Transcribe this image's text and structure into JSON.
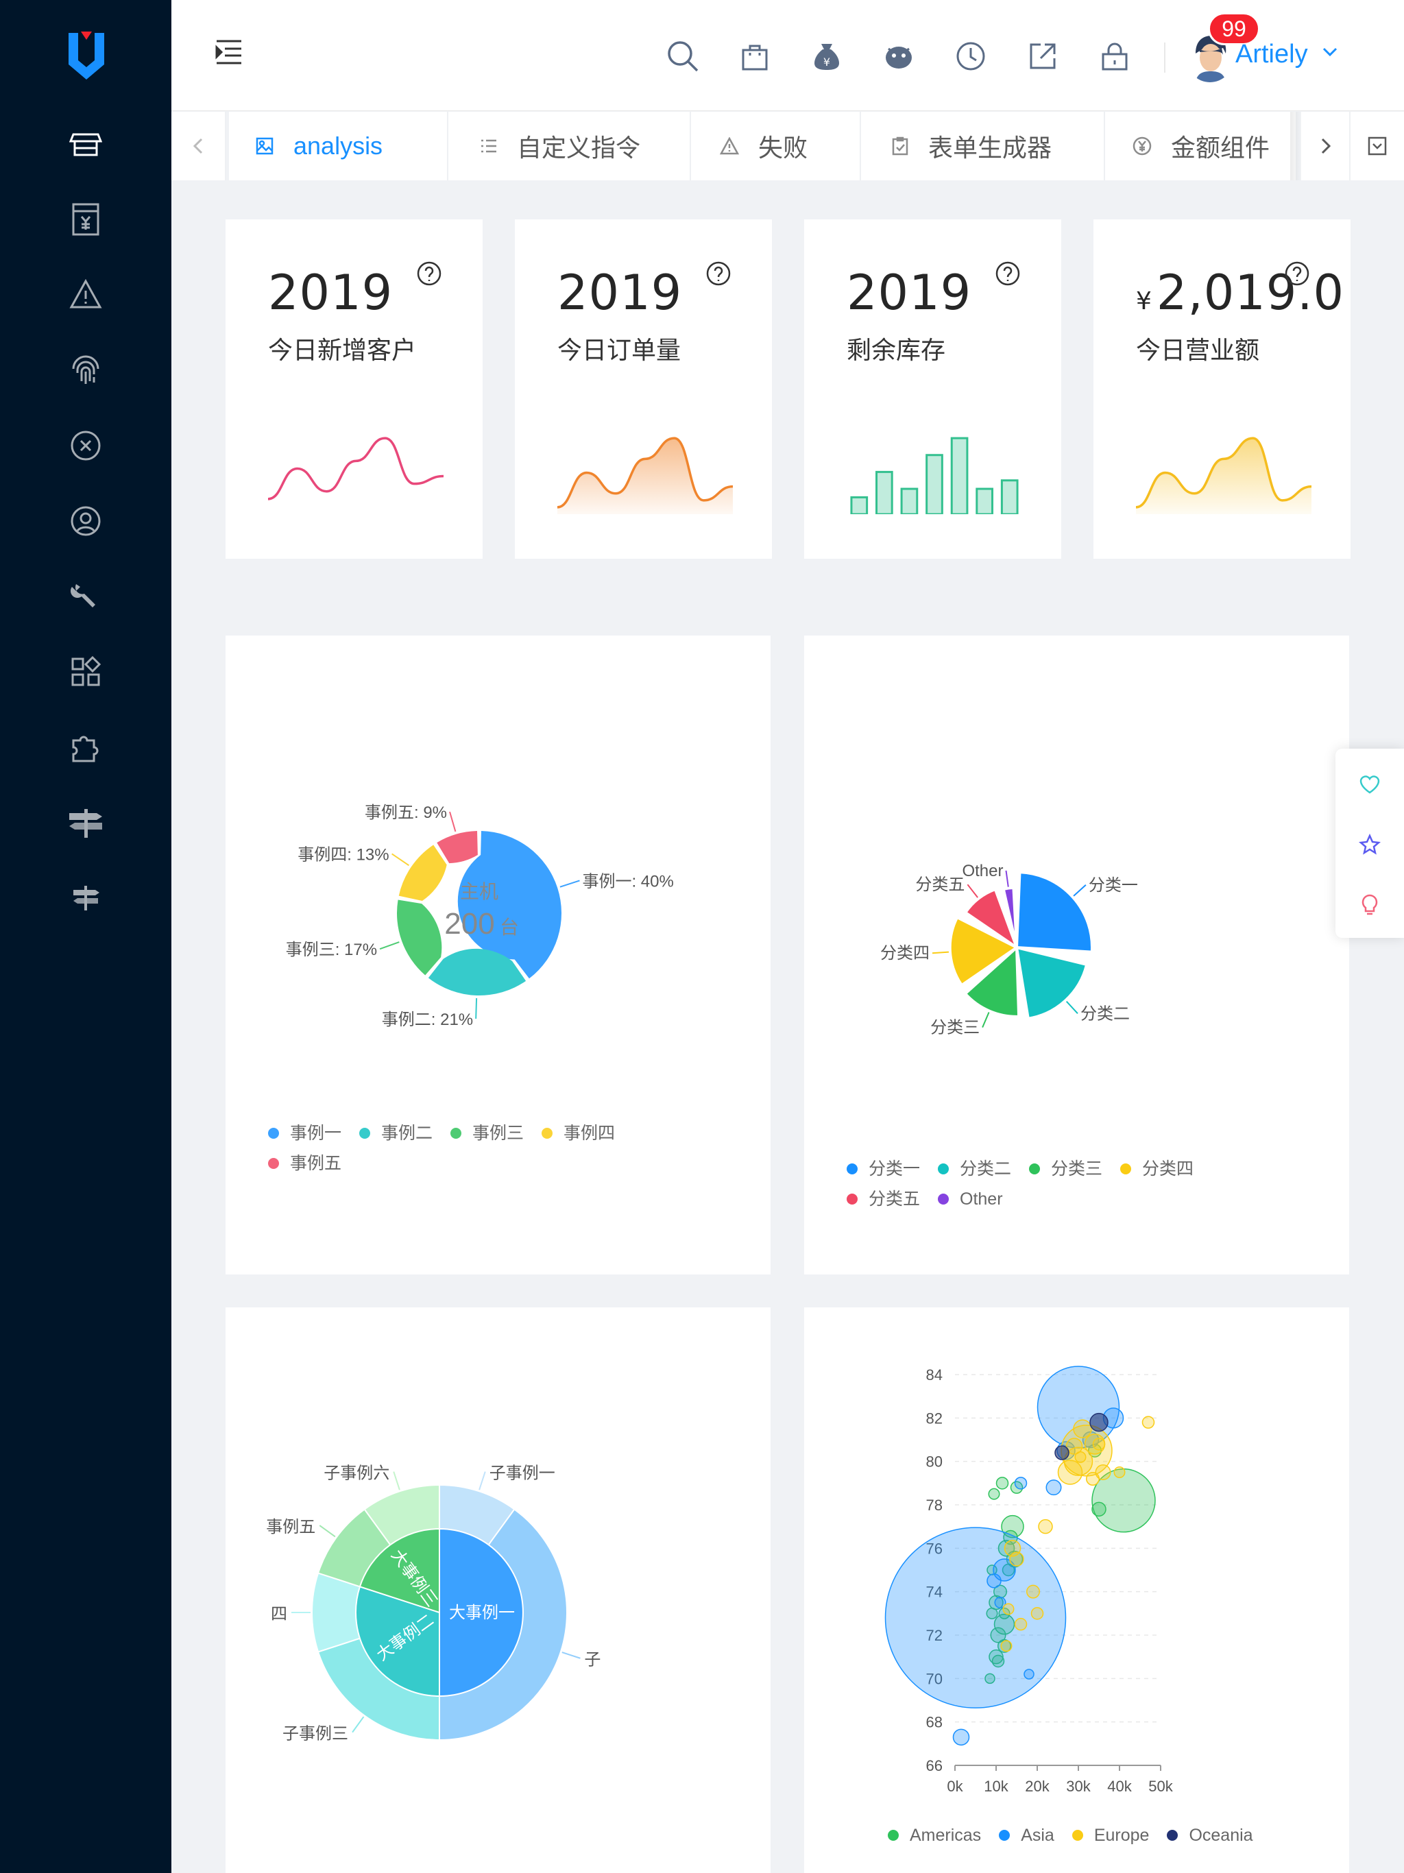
{
  "header": {
    "user_name": "Artiely",
    "notification_count": "99",
    "icons": [
      "search-icon",
      "shopping-bag-icon",
      "money-bag-icon",
      "bird-icon",
      "clock-icon",
      "external-link-icon",
      "lock-icon"
    ]
  },
  "tabs": [
    {
      "label": "analysis",
      "icon": "image-icon",
      "active": true
    },
    {
      "label": "自定义指令",
      "icon": "list-icon",
      "active": false
    },
    {
      "label": "失败",
      "icon": "warning-icon",
      "active": false
    },
    {
      "label": "表单生成器",
      "icon": "form-icon",
      "active": false
    },
    {
      "label": "金额组件",
      "icon": "yen-icon",
      "active": false
    }
  ],
  "sidebar": {
    "items": [
      "shop-icon",
      "receipt-yen-icon",
      "warning-icon",
      "fingerprint-icon",
      "close-circle-icon",
      "user-circle-icon",
      "wrench-icon",
      "apps-icon",
      "puzzle-icon",
      "signpost-icon",
      "signpost-small-icon"
    ]
  },
  "stats": [
    {
      "value": "2019",
      "label": "今日新增客户",
      "color": "#e8487a",
      "kind": "line",
      "trend": [
        2,
        6,
        3,
        7,
        10,
        4,
        5
      ]
    },
    {
      "value": "2019",
      "label": "今日订单量",
      "color": "#f0852d",
      "kind": "area",
      "trend": [
        1,
        6,
        3,
        8,
        11,
        2,
        4
      ]
    },
    {
      "value": "2019",
      "label": "剩余库存",
      "color": "#33c08f",
      "kind": "bar",
      "trend": [
        2,
        5,
        3,
        7,
        9,
        3,
        4
      ]
    },
    {
      "currency": "¥",
      "value": "2,019.0",
      "label": "今日营业额",
      "color": "#f5bd1f",
      "kind": "area",
      "trend": [
        1,
        6,
        3,
        8,
        11,
        2,
        4
      ]
    }
  ],
  "chart_data": [
    {
      "type": "pie",
      "title": "主机",
      "center_value": "200",
      "center_unit": "台",
      "categories": [
        "事例一",
        "事例二",
        "事例三",
        "事例四",
        "事例五"
      ],
      "values": [
        40,
        21,
        17,
        13,
        9
      ],
      "labels": [
        "事例一: 40%",
        "事例二: 21%",
        "事例三: 17%",
        "事例四: 13%",
        "事例五: 9%"
      ],
      "colors": [
        "#3ba1ff",
        "#36cbcb",
        "#4ecb73",
        "#fbd437",
        "#f2637b"
      ],
      "legend": [
        "事例一",
        "事例二",
        "事例三",
        "事例四",
        "事例五"
      ]
    },
    {
      "type": "pie",
      "subtype": "rose",
      "categories": [
        "分类一",
        "分类二",
        "分类三",
        "分类四",
        "分类五",
        "Other"
      ],
      "values": [
        27,
        22,
        18,
        15,
        10,
        8
      ],
      "colors": [
        "#1890ff",
        "#13c2c2",
        "#2fc25b",
        "#facc14",
        "#f04864",
        "#8543e0"
      ],
      "legend": [
        "分类一",
        "分类二",
        "分类三",
        "分类四",
        "分类五",
        "Other"
      ]
    },
    {
      "type": "pie",
      "subtype": "sunburst",
      "inner": {
        "categories": [
          "大事例一",
          "大事例二",
          "大事例三"
        ],
        "values": [
          50,
          30,
          20
        ],
        "colors": [
          "#3ba1ff",
          "#36cbcb",
          "#4ecb73"
        ]
      },
      "outer": {
        "categories": [
          "子事例一",
          "子事例二",
          "子事例三",
          "子事例四",
          "子事例五",
          "子事例六"
        ],
        "values": [
          10,
          40,
          20,
          10,
          10,
          10
        ],
        "colors": [
          "#c2e3fb",
          "#93cefc",
          "#8be9e9",
          "#b5f4f4",
          "#a1e8b0",
          "#c5f4cc"
        ]
      },
      "visible_labels": [
        "子事例一",
        "子",
        "子事例三",
        "四",
        "事例五",
        "子事例六"
      ]
    },
    {
      "type": "scatter",
      "subtype": "bubble",
      "xlabel": "",
      "ylabel": "",
      "xlim": [
        0,
        50000
      ],
      "ylim": [
        66,
        84
      ],
      "xticks": [
        "0k",
        "10k",
        "20k",
        "30k",
        "40k",
        "50k"
      ],
      "yticks": [
        "66",
        "68",
        "70",
        "72",
        "74",
        "76",
        "78",
        "80",
        "82",
        "84"
      ],
      "series": [
        {
          "name": "Americas",
          "color": "#2fc25b",
          "points": [
            [
              10000,
              73.5,
              8
            ],
            [
              12000,
              72.5,
              14
            ],
            [
              11000,
              74,
              7
            ],
            [
              12500,
              76,
              10
            ],
            [
              14000,
              77,
              16
            ],
            [
              13000,
              75,
              6
            ],
            [
              10500,
              72,
              9
            ],
            [
              12000,
              71.5,
              7
            ],
            [
              9000,
              73,
              5
            ],
            [
              8500,
              70,
              4
            ],
            [
              15000,
              78.8,
              6
            ],
            [
              9500,
              78.5,
              5
            ],
            [
              41000,
              78.2,
              56
            ],
            [
              35000,
              77.8,
              8
            ],
            [
              34000,
              80.5,
              7
            ],
            [
              11500,
              79,
              6
            ],
            [
              10000,
              71,
              8
            ],
            [
              14500,
              75.5,
              10
            ],
            [
              13500,
              76.5,
              8
            ],
            [
              12000,
              73,
              5
            ],
            [
              10500,
              70.8,
              6
            ],
            [
              9000,
              75,
              4
            ]
          ]
        },
        {
          "name": "Asia",
          "color": "#1890ff",
          "points": [
            [
              5000,
              72.8,
              170
            ],
            [
              30000,
              82.5,
              74
            ],
            [
              38500,
              82,
              14
            ],
            [
              1500,
              67.3,
              10
            ],
            [
              12000,
              75,
              16
            ],
            [
              16000,
              79,
              6
            ],
            [
              24000,
              78.8,
              9
            ],
            [
              33000,
              81,
              10
            ],
            [
              11000,
              73.5,
              5
            ],
            [
              18000,
              70.2,
              4
            ],
            [
              9500,
              74.5,
              8
            ],
            [
              27000,
              80.5,
              12
            ]
          ]
        },
        {
          "name": "Europe",
          "color": "#facc14",
          "points": [
            [
              32000,
              80.5,
              44
            ],
            [
              30000,
              80,
              22
            ],
            [
              28000,
              79.5,
              18
            ],
            [
              34000,
              80.8,
              14
            ],
            [
              36000,
              79.5,
              9
            ],
            [
              31000,
              81.5,
              12
            ],
            [
              29000,
              80.7,
              10
            ],
            [
              47000,
              81.8,
              6
            ],
            [
              40000,
              79.5,
              5
            ],
            [
              14000,
              76,
              10
            ],
            [
              15000,
              75.5,
              8
            ],
            [
              22000,
              77,
              8
            ],
            [
              16000,
              72.5,
              6
            ],
            [
              13000,
              73.2,
              5
            ],
            [
              19000,
              74,
              7
            ],
            [
              20000,
              73,
              6
            ],
            [
              12500,
              71.5,
              5
            ],
            [
              33500,
              79.2,
              7
            ],
            [
              35000,
              80.8,
              6
            ],
            [
              30500,
              80.2,
              5
            ]
          ]
        },
        {
          "name": "Oceania",
          "color": "#223273",
          "points": [
            [
              35000,
              81.8,
              12
            ],
            [
              26000,
              80.4,
              8
            ]
          ]
        }
      ],
      "legend": [
        "Americas",
        "Asia",
        "Europe",
        "Oceania"
      ]
    }
  ]
}
